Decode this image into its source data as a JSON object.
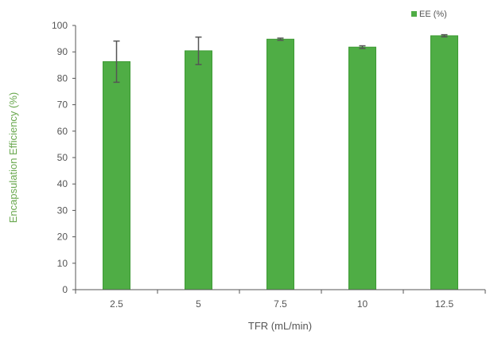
{
  "chart_data": {
    "type": "bar",
    "categories": [
      "2.5",
      "5",
      "7.5",
      "10",
      "12.5"
    ],
    "series": [
      {
        "name": "EE (%)",
        "values": [
          86.3,
          90.4,
          94.8,
          91.8,
          96.1
        ],
        "errors": [
          7.8,
          5.2,
          0.4,
          0.5,
          0.4
        ]
      }
    ],
    "xlabel": "TFR (mL/min)",
    "ylabel": "Encapsulation Efficiency (%)",
    "ylim": [
      0,
      100
    ],
    "yticks": [
      0,
      10,
      20,
      30,
      40,
      50,
      60,
      70,
      80,
      90,
      100
    ],
    "grid": false,
    "legend_position": "top-right",
    "colors": {
      "bar": "#4fad45",
      "bar_edge": "#3d9a34",
      "error_bar": "#555555",
      "axis": "#555555",
      "ylabel": "#6aa84f"
    }
  }
}
